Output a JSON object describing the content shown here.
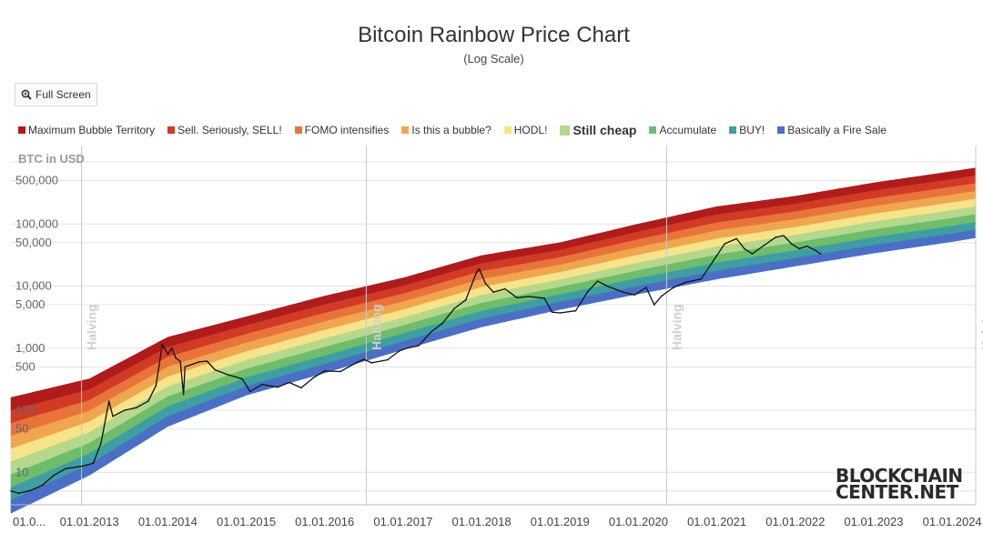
{
  "header": {
    "title": "Bitcoin Rainbow Price Chart",
    "subtitle": "(Log Scale)"
  },
  "controls": {
    "fullscreen_label": "Full Screen"
  },
  "logo": {
    "line1": "BLOCKCHAIN",
    "line2": "CENTER.NET"
  },
  "chart_data": {
    "type": "area",
    "title": "Bitcoin Rainbow Price Chart",
    "subtitle": "(Log Scale)",
    "ylabel": "BTC in USD",
    "yscale": "log",
    "ylim": [
      3,
      1000000
    ],
    "y_tick_labels": [
      {
        "value": 500000,
        "label": "500,000"
      },
      {
        "value": 100000,
        "label": "100,000"
      },
      {
        "value": 50000,
        "label": "50,000"
      },
      {
        "value": 10000,
        "label": "10,000"
      },
      {
        "value": 5000,
        "label": "5,000"
      },
      {
        "value": 1000,
        "label": "1,000"
      },
      {
        "value": 500,
        "label": "500"
      },
      {
        "value": 100,
        "label": "100"
      },
      {
        "value": 50,
        "label": "50"
      },
      {
        "value": 10,
        "label": "10"
      }
    ],
    "x_tick_labels": [
      {
        "year": 2012.0,
        "label": "01.0..."
      },
      {
        "year": 2013.0,
        "label": "01.01.2013"
      },
      {
        "year": 2014.0,
        "label": "01.01.2014"
      },
      {
        "year": 2015.0,
        "label": "01.01.2015"
      },
      {
        "year": 2016.0,
        "label": "01.01.2016"
      },
      {
        "year": 2017.0,
        "label": "01.01.2017"
      },
      {
        "year": 2018.0,
        "label": "01.01.2018"
      },
      {
        "year": 2019.0,
        "label": "01.01.2019"
      },
      {
        "year": 2020.0,
        "label": "01.01.2020"
      },
      {
        "year": 2021.0,
        "label": "01.01.2021"
      },
      {
        "year": 2022.0,
        "label": "01.01.2022"
      },
      {
        "year": 2023.0,
        "label": "01.01.2023"
      },
      {
        "year": 2024.0,
        "label": "01.01.2024"
      }
    ],
    "halvings": [
      {
        "year": 2012.9,
        "label": "Halving"
      },
      {
        "year": 2016.53,
        "label": "Halving"
      },
      {
        "year": 2020.36,
        "label": "Halving"
      },
      {
        "year": 2024.3,
        "label": "Halving"
      }
    ],
    "bands": [
      {
        "name": "Maximum Bubble Territory",
        "color": "#b01b1b"
      },
      {
        "name": "Sell. Seriously, SELL!",
        "color": "#d13b25"
      },
      {
        "name": "FOMO intensifies",
        "color": "#e8743b"
      },
      {
        "name": "Is this a bubble?",
        "color": "#f0a64e"
      },
      {
        "name": "HODL!",
        "color": "#f6e48a"
      },
      {
        "name": "Still cheap",
        "color": "#b5d88c",
        "emphasis": true
      },
      {
        "name": "Accumulate",
        "color": "#6dbd6d"
      },
      {
        "name": "BUY!",
        "color": "#3f9ea3"
      },
      {
        "name": "Basically a Fire Sale",
        "color": "#4a6fc4"
      }
    ],
    "band_curves": [
      {
        "label": "top edge",
        "points": [
          [
            2012.0,
            160
          ],
          [
            2013.0,
            320
          ],
          [
            2014.0,
            1500
          ],
          [
            2015.0,
            3200
          ],
          [
            2016.0,
            6900
          ],
          [
            2017.0,
            13500
          ],
          [
            2018.0,
            31000
          ],
          [
            2019.0,
            50000
          ],
          [
            2020.0,
            100000
          ],
          [
            2021.0,
            190000
          ],
          [
            2022.0,
            280000
          ],
          [
            2023.0,
            460000
          ],
          [
            2024.0,
            700000
          ],
          [
            2024.3,
            800000
          ]
        ]
      },
      {
        "label": "bottom edge",
        "points": [
          [
            2012.0,
            2.2
          ],
          [
            2013.0,
            9
          ],
          [
            2014.0,
            55
          ],
          [
            2015.0,
            175
          ],
          [
            2016.0,
            400
          ],
          [
            2017.0,
            950
          ],
          [
            2018.0,
            2200
          ],
          [
            2019.0,
            4200
          ],
          [
            2020.0,
            7500
          ],
          [
            2021.0,
            13000
          ],
          [
            2022.0,
            21000
          ],
          [
            2023.0,
            34000
          ],
          [
            2024.0,
            52000
          ],
          [
            2024.3,
            60000
          ]
        ]
      }
    ],
    "series": [
      {
        "name": "BTC price",
        "color": "#111111",
        "points": [
          [
            2012.0,
            5.0
          ],
          [
            2012.1,
            4.6
          ],
          [
            2012.25,
            5.1
          ],
          [
            2012.4,
            6.2
          ],
          [
            2012.55,
            9.0
          ],
          [
            2012.7,
            11.5
          ],
          [
            2012.9,
            12.5
          ],
          [
            2013.05,
            14.0
          ],
          [
            2013.15,
            30.0
          ],
          [
            2013.25,
            140.0
          ],
          [
            2013.3,
            80.0
          ],
          [
            2013.45,
            100.0
          ],
          [
            2013.6,
            110.0
          ],
          [
            2013.75,
            140.0
          ],
          [
            2013.85,
            250.0
          ],
          [
            2013.93,
            1150.0
          ],
          [
            2014.0,
            800.0
          ],
          [
            2014.05,
            1000.0
          ],
          [
            2014.1,
            700.0
          ],
          [
            2014.16,
            610.0
          ],
          [
            2014.2,
            180.0
          ],
          [
            2014.22,
            500.0
          ],
          [
            2014.4,
            600.0
          ],
          [
            2014.5,
            620.0
          ],
          [
            2014.6,
            450.0
          ],
          [
            2014.75,
            380.0
          ],
          [
            2014.95,
            320.0
          ],
          [
            2015.05,
            200.0
          ],
          [
            2015.2,
            260.0
          ],
          [
            2015.4,
            235.0
          ],
          [
            2015.55,
            280.0
          ],
          [
            2015.7,
            230.0
          ],
          [
            2015.85,
            330.0
          ],
          [
            2016.0,
            430.0
          ],
          [
            2016.2,
            420.0
          ],
          [
            2016.4,
            580.0
          ],
          [
            2016.5,
            660.0
          ],
          [
            2016.6,
            580.0
          ],
          [
            2016.8,
            650.0
          ],
          [
            2016.95,
            900.0
          ],
          [
            2017.05,
            1000.0
          ],
          [
            2017.2,
            1100.0
          ],
          [
            2017.35,
            1800.0
          ],
          [
            2017.5,
            2500.0
          ],
          [
            2017.65,
            4300.0
          ],
          [
            2017.8,
            6000.0
          ],
          [
            2017.93,
            16000.0
          ],
          [
            2017.97,
            19000.0
          ],
          [
            2018.05,
            11000.0
          ],
          [
            2018.15,
            8000.0
          ],
          [
            2018.3,
            9000.0
          ],
          [
            2018.45,
            6500.0
          ],
          [
            2018.6,
            6800.0
          ],
          [
            2018.8,
            6400.0
          ],
          [
            2018.9,
            3800.0
          ],
          [
            2019.0,
            3700.0
          ],
          [
            2019.2,
            4000.0
          ],
          [
            2019.35,
            8000.0
          ],
          [
            2019.48,
            12000.0
          ],
          [
            2019.6,
            10000.0
          ],
          [
            2019.8,
            8000.0
          ],
          [
            2019.95,
            7200.0
          ],
          [
            2020.1,
            9500.0
          ],
          [
            2020.2,
            5000.0
          ],
          [
            2020.3,
            7000.0
          ],
          [
            2020.45,
            9500.0
          ],
          [
            2020.6,
            11500.0
          ],
          [
            2020.8,
            13000.0
          ],
          [
            2020.95,
            25000.0
          ],
          [
            2021.1,
            48000.0
          ],
          [
            2021.25,
            58000.0
          ],
          [
            2021.35,
            40000.0
          ],
          [
            2021.45,
            33000.0
          ],
          [
            2021.6,
            45000.0
          ],
          [
            2021.75,
            61000.0
          ],
          [
            2021.85,
            65000.0
          ],
          [
            2021.95,
            48000.0
          ],
          [
            2022.05,
            40000.0
          ],
          [
            2022.15,
            44000.0
          ],
          [
            2022.25,
            38000.0
          ],
          [
            2022.32,
            33000.0
          ]
        ]
      }
    ],
    "grid": true,
    "legend_position": "top"
  }
}
